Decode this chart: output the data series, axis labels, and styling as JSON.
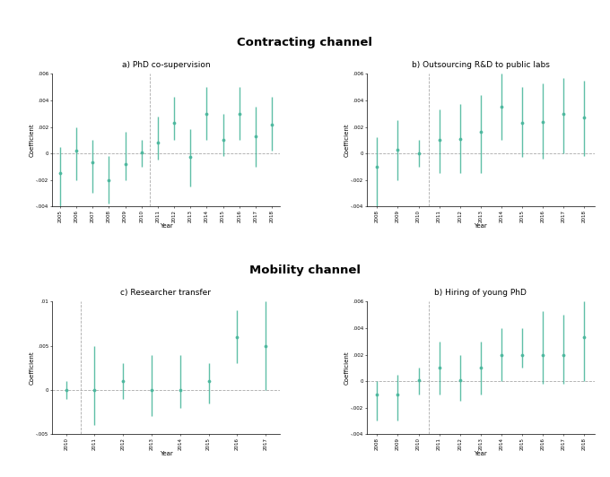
{
  "panel_a": {
    "title": "a) PhD co-supervision",
    "years": [
      2005,
      2006,
      2007,
      2008,
      2009,
      2010,
      2011,
      2012,
      2013,
      2014,
      2015,
      2016,
      2017,
      2018
    ],
    "coef": [
      -0.0015,
      0.0002,
      -0.0007,
      -0.002,
      -0.0008,
      0.0001,
      0.0008,
      0.0023,
      -0.0003,
      0.003,
      0.001,
      0.003,
      0.0013,
      0.0022
    ],
    "ci_lo": [
      -0.004,
      -0.002,
      -0.003,
      -0.0038,
      -0.002,
      -0.001,
      -0.0005,
      0.001,
      -0.0025,
      0.001,
      -0.0002,
      0.001,
      -0.001,
      0.0002
    ],
    "ci_hi": [
      0.0005,
      0.002,
      0.001,
      -0.0002,
      0.0016,
      0.001,
      0.0028,
      0.0043,
      0.0018,
      0.005,
      0.003,
      0.005,
      0.0035,
      0.0043
    ],
    "vline_x": 2010.5,
    "xlim": [
      2004.5,
      2018.5
    ],
    "ylim": [
      -0.004,
      0.006
    ],
    "yticks": [
      -0.004,
      -0.002,
      0,
      0.002,
      0.004,
      0.006
    ],
    "ytick_labels": [
      "-.004",
      "-.002",
      "0",
      ".002",
      ".004",
      ".006"
    ]
  },
  "panel_b": {
    "title": "b) Outsourcing R&D to public labs",
    "years": [
      2008,
      2009,
      2010,
      2011,
      2012,
      2013,
      2014,
      2015,
      2016,
      2017,
      2018
    ],
    "coef": [
      -0.001,
      0.0003,
      0.0,
      0.001,
      0.0011,
      0.0016,
      0.0035,
      0.0023,
      0.0024,
      0.003,
      0.0027
    ],
    "ci_lo": [
      -0.004,
      -0.002,
      -0.001,
      -0.0015,
      -0.0015,
      -0.0015,
      0.001,
      -0.0003,
      -0.0004,
      0.0,
      -0.0002
    ],
    "ci_hi": [
      0.0012,
      0.0025,
      0.001,
      0.0033,
      0.0037,
      0.0044,
      0.006,
      0.005,
      0.0053,
      0.0057,
      0.0055
    ],
    "vline_x": 2010.5,
    "xlim": [
      2007.5,
      2018.5
    ],
    "ylim": [
      -0.004,
      0.006
    ],
    "yticks": [
      -0.004,
      -0.002,
      0,
      0.002,
      0.004,
      0.006
    ],
    "ytick_labels": [
      "-.004",
      "-.002",
      "0",
      ".002",
      ".004",
      ".006"
    ]
  },
  "panel_c": {
    "title": "c) Researcher transfer",
    "years": [
      2010,
      2011,
      2012,
      2013,
      2014,
      2015,
      2016,
      2017
    ],
    "coef": [
      0.0,
      0.0,
      0.001,
      0.0,
      0.0,
      0.001,
      0.006,
      0.005
    ],
    "ci_lo": [
      -0.001,
      -0.004,
      -0.001,
      -0.003,
      -0.002,
      -0.0015,
      0.003,
      0.0
    ],
    "ci_hi": [
      0.001,
      0.005,
      0.003,
      0.004,
      0.004,
      0.003,
      0.009,
      0.01
    ],
    "vline_x": 2010.5,
    "xlim": [
      2009.5,
      2017.5
    ],
    "ylim": [
      -0.005,
      0.01
    ],
    "yticks": [
      -0.005,
      0,
      0.005,
      0.01
    ],
    "ytick_labels": [
      "-.005",
      "0",
      ".005",
      ".01"
    ]
  },
  "panel_d": {
    "title": "b) Hiring of young PhD",
    "years": [
      2008,
      2009,
      2010,
      2011,
      2012,
      2013,
      2014,
      2015,
      2016,
      2017,
      2018
    ],
    "coef": [
      -0.001,
      -0.001,
      0.0001,
      0.001,
      0.0001,
      0.001,
      0.002,
      0.002,
      0.002,
      0.002,
      0.0033
    ],
    "ci_lo": [
      -0.003,
      -0.003,
      -0.001,
      -0.001,
      -0.0015,
      -0.001,
      0.0,
      0.001,
      -0.0002,
      -0.0002,
      0.0
    ],
    "ci_hi": [
      0.0,
      0.0005,
      0.001,
      0.003,
      0.002,
      0.003,
      0.004,
      0.004,
      0.0053,
      0.005,
      0.006
    ],
    "vline_x": 2010.5,
    "xlim": [
      2007.5,
      2018.5
    ],
    "ylim": [
      -0.004,
      0.006
    ],
    "yticks": [
      -0.004,
      -0.002,
      0,
      0.002,
      0.004,
      0.006
    ],
    "ytick_labels": [
      "-.004",
      "-.002",
      "0",
      ".002",
      ".004",
      ".006"
    ]
  },
  "main_title_top": "Contracting channel",
  "main_title_bottom": "Mobility channel",
  "xlabel": "Year",
  "ylabel": "Coefficient",
  "marker_color": "#4db89e",
  "ci_color": "#4db89e",
  "hline_color": "#aaaaaa",
  "vline_color": "#aaaaaa",
  "background_color": "#ffffff"
}
